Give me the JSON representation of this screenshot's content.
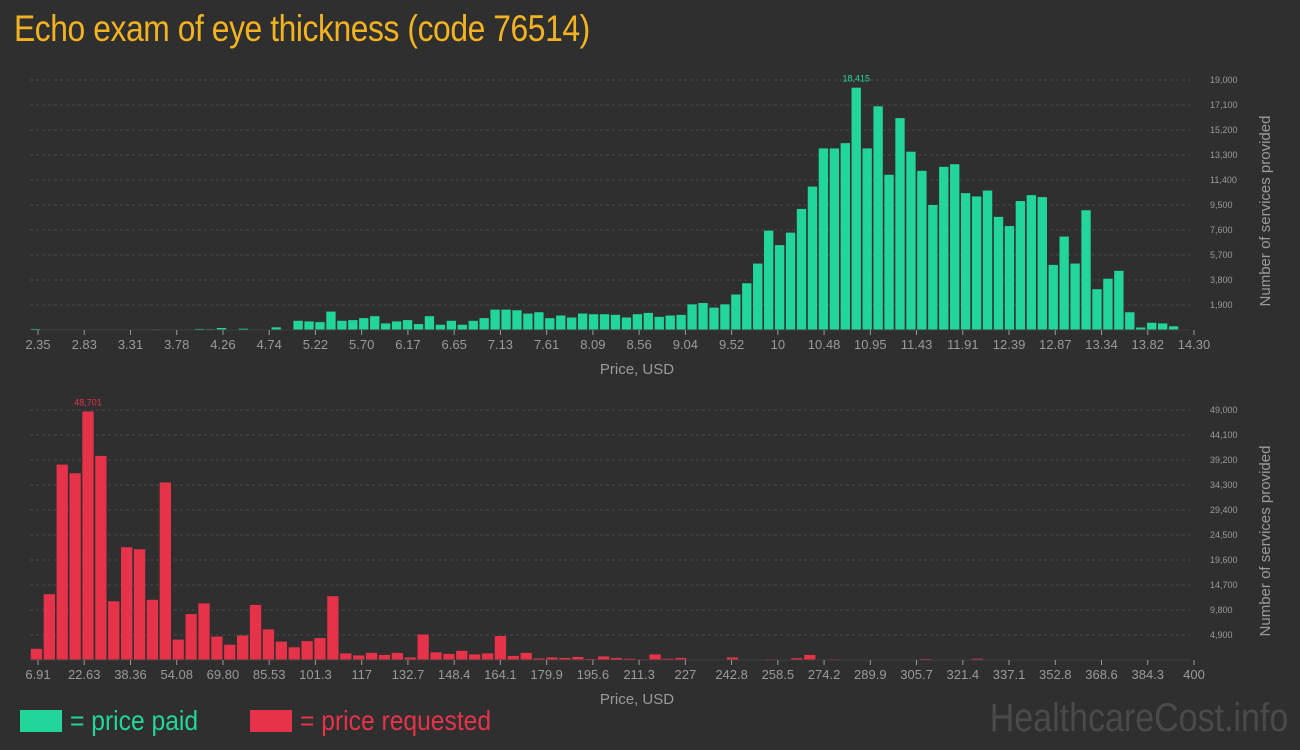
{
  "page": {
    "title": "Echo exam of eye thickness (code 76514)",
    "brand": "HealthcareCost.info"
  },
  "legend": {
    "paid_label": "= price paid",
    "requested_label": "= price requested"
  },
  "colors": {
    "background": "#2f2f2f",
    "title": "#f3b320",
    "paid": "#22d69b",
    "requested": "#e6334a",
    "grid": "#4a4a4a",
    "axis_text": "#9a9a9a",
    "brand": "#4a4a4a"
  },
  "chart_data": [
    {
      "id": "paid",
      "type": "bar",
      "title": "",
      "xlabel": "Price, USD",
      "ylabel": "Number of services provided",
      "ylim": [
        0,
        19000
      ],
      "grid": true,
      "y_ticks": [
        "1,900",
        "3,800",
        "5,700",
        "7,600",
        "9,500",
        "11,400",
        "13,300",
        "15,200",
        "17,100",
        "19,000"
      ],
      "x_ticks": [
        "2.35",
        "2.83",
        "3.31",
        "3.78",
        "4.26",
        "4.74",
        "5.22",
        "5.70",
        "6.17",
        "6.65",
        "7.13",
        "7.61",
        "8.09",
        "8.56",
        "9.04",
        "9.52",
        "10",
        "10.48",
        "10.95",
        "11.43",
        "11.91",
        "12.39",
        "12.87",
        "13.34",
        "13.82",
        "14.30"
      ],
      "max_label": "18,415",
      "color": "#22d69b",
      "values": [
        80,
        10,
        10,
        10,
        10,
        10,
        10,
        10,
        10,
        10,
        20,
        50,
        20,
        10,
        20,
        80,
        60,
        150,
        40,
        100,
        10,
        10,
        200,
        20,
        700,
        650,
        600,
        1400,
        700,
        750,
        900,
        1050,
        500,
        650,
        750,
        450,
        1050,
        400,
        700,
        400,
        700,
        900,
        1550,
        1550,
        1500,
        1250,
        1350,
        900,
        1100,
        950,
        1250,
        1200,
        1200,
        1150,
        950,
        1200,
        1300,
        1000,
        1100,
        1150,
        1950,
        2050,
        1700,
        1950,
        2700,
        3550,
        5050,
        7550,
        6450,
        7400,
        9200,
        10900,
        13800,
        13800,
        14200,
        18415,
        13800,
        17000,
        11800,
        16100,
        13550,
        12100,
        9500,
        12400,
        12600,
        10400,
        10150,
        10600,
        8600,
        7900,
        9800,
        10250,
        10100,
        4950,
        7100,
        5050,
        9100,
        3100,
        3900,
        4500,
        1350,
        190,
        550,
        500,
        280,
        40
      ]
    },
    {
      "id": "requested",
      "type": "bar",
      "title": "",
      "xlabel": "Price, USD",
      "ylabel": "Number of services provided",
      "ylim": [
        0,
        49000
      ],
      "grid": true,
      "y_ticks": [
        "4,900",
        "9,800",
        "14,700",
        "19,600",
        "24,500",
        "29,400",
        "34,300",
        "39,200",
        "44,100",
        "49,000"
      ],
      "x_ticks": [
        "6.91",
        "22.63",
        "38.36",
        "54.08",
        "69.80",
        "85.53",
        "101.3",
        "117",
        "132.7",
        "148.4",
        "164.1",
        "179.9",
        "195.6",
        "211.3",
        "227",
        "242.8",
        "258.5",
        "274.2",
        "289.9",
        "305.7",
        "321.4",
        "337.1",
        "352.8",
        "368.6",
        "384.3",
        "400"
      ],
      "max_label": "48,701",
      "color": "#e6334a",
      "values": [
        2200,
        12900,
        38300,
        36600,
        48701,
        40000,
        11500,
        22100,
        21700,
        11800,
        34800,
        4000,
        9000,
        11100,
        4600,
        3000,
        4800,
        10800,
        6000,
        3600,
        2500,
        3700,
        4300,
        12500,
        1300,
        900,
        1400,
        1000,
        1400,
        500,
        5000,
        1500,
        1200,
        1800,
        1100,
        1300,
        4700,
        800,
        1400,
        300,
        500,
        400,
        600,
        200,
        700,
        400,
        250,
        150,
        1100,
        250,
        400,
        100,
        100,
        50,
        500,
        50,
        100,
        150,
        40,
        350,
        1000,
        100,
        150,
        100,
        50,
        100,
        100,
        40,
        100,
        200,
        100,
        50,
        100,
        250,
        100,
        40,
        50,
        80,
        40,
        60,
        30,
        50,
        30,
        40,
        20,
        80,
        50,
        30,
        60,
        20
      ]
    }
  ]
}
